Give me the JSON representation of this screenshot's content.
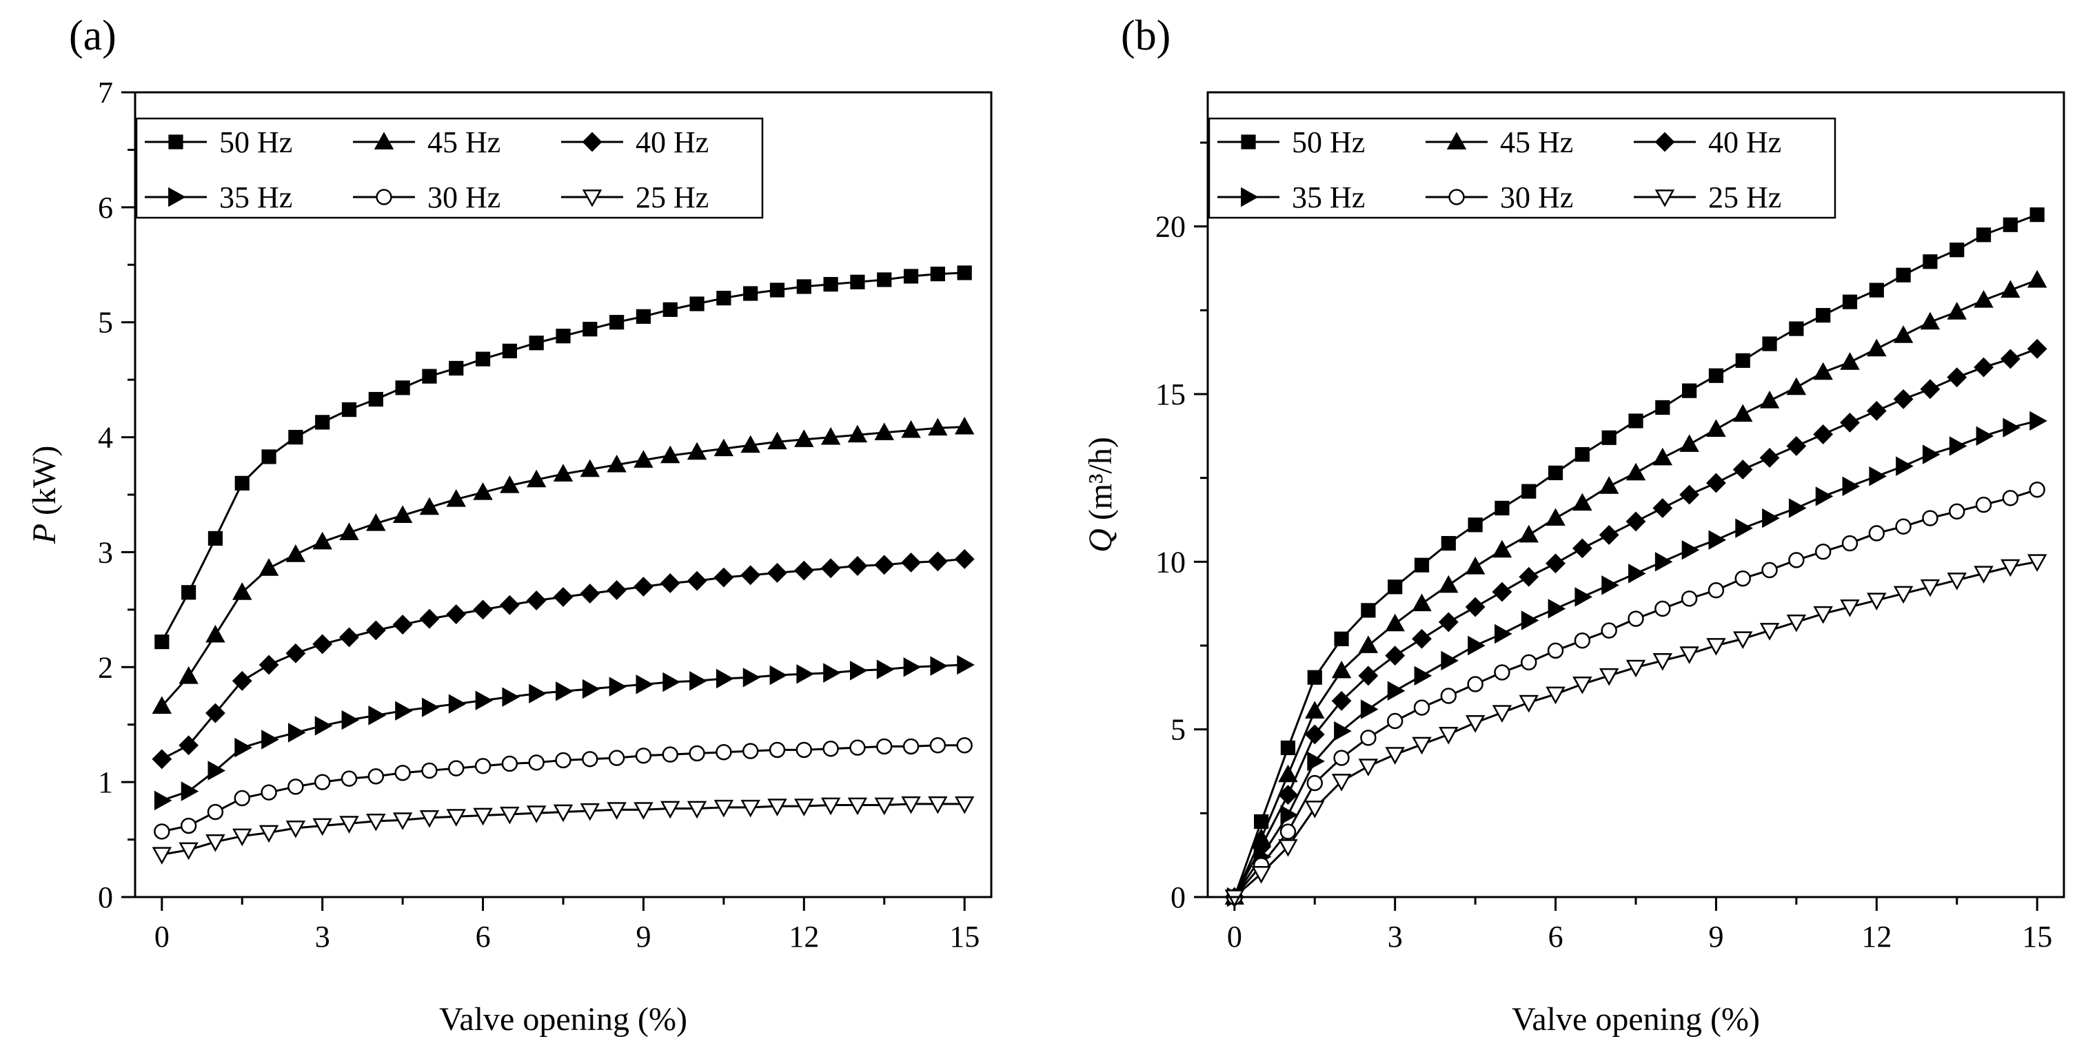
{
  "chart_data": [
    {
      "panel_label": "(a)",
      "type": "line",
      "xlabel": "Valve opening (%)",
      "ylabel_symbol": "P",
      "ylabel_unit": " (kW)",
      "xlim": [
        -0.5,
        15.5
      ],
      "ylim": [
        0,
        7
      ],
      "xticks": [
        0,
        3,
        6,
        9,
        12,
        15
      ],
      "yticks": [
        0,
        1,
        2,
        3,
        4,
        5,
        6,
        7
      ],
      "legend": "top-left",
      "x": [
        0,
        0.5,
        1,
        1.5,
        2,
        2.5,
        3,
        3.5,
        4,
        4.5,
        5,
        5.5,
        6,
        6.5,
        7,
        7.5,
        8,
        8.5,
        9,
        9.5,
        10,
        10.5,
        11,
        11.5,
        12,
        12.5,
        13,
        13.5,
        14,
        14.5,
        15
      ],
      "series": [
        {
          "name": "50 Hz",
          "marker": "square-filled",
          "values": [
            2.22,
            2.65,
            3.12,
            3.6,
            3.83,
            4.0,
            4.13,
            4.24,
            4.33,
            4.43,
            4.53,
            4.6,
            4.68,
            4.75,
            4.82,
            4.88,
            4.94,
            5.0,
            5.05,
            5.11,
            5.16,
            5.21,
            5.25,
            5.28,
            5.31,
            5.33,
            5.35,
            5.37,
            5.4,
            5.42,
            5.43
          ]
        },
        {
          "name": "45 Hz",
          "marker": "triangle-up-filled",
          "values": [
            1.66,
            1.92,
            2.28,
            2.65,
            2.86,
            2.98,
            3.09,
            3.17,
            3.25,
            3.32,
            3.39,
            3.46,
            3.52,
            3.58,
            3.63,
            3.68,
            3.72,
            3.76,
            3.8,
            3.84,
            3.87,
            3.9,
            3.93,
            3.96,
            3.98,
            4.0,
            4.02,
            4.04,
            4.06,
            4.08,
            4.09
          ]
        },
        {
          "name": "40 Hz",
          "marker": "diamond-filled",
          "values": [
            1.2,
            1.32,
            1.6,
            1.88,
            2.02,
            2.12,
            2.2,
            2.26,
            2.32,
            2.37,
            2.42,
            2.46,
            2.5,
            2.54,
            2.58,
            2.61,
            2.64,
            2.67,
            2.7,
            2.73,
            2.75,
            2.78,
            2.8,
            2.82,
            2.84,
            2.86,
            2.88,
            2.89,
            2.91,
            2.92,
            2.94
          ]
        },
        {
          "name": "35 Hz",
          "marker": "triangle-right-filled",
          "values": [
            0.84,
            0.92,
            1.1,
            1.3,
            1.37,
            1.43,
            1.49,
            1.54,
            1.58,
            1.62,
            1.65,
            1.68,
            1.71,
            1.74,
            1.77,
            1.79,
            1.81,
            1.83,
            1.85,
            1.87,
            1.88,
            1.9,
            1.91,
            1.93,
            1.94,
            1.95,
            1.97,
            1.98,
            2.0,
            2.01,
            2.02
          ]
        },
        {
          "name": "30 Hz",
          "marker": "circle-open",
          "values": [
            0.57,
            0.62,
            0.74,
            0.86,
            0.91,
            0.96,
            1.0,
            1.03,
            1.05,
            1.08,
            1.1,
            1.12,
            1.14,
            1.16,
            1.17,
            1.19,
            1.2,
            1.21,
            1.23,
            1.24,
            1.25,
            1.26,
            1.27,
            1.28,
            1.28,
            1.29,
            1.3,
            1.31,
            1.31,
            1.32,
            1.32
          ]
        },
        {
          "name": "25 Hz",
          "marker": "triangle-down-open",
          "values": [
            0.37,
            0.41,
            0.48,
            0.53,
            0.56,
            0.6,
            0.62,
            0.64,
            0.66,
            0.67,
            0.69,
            0.7,
            0.71,
            0.72,
            0.73,
            0.74,
            0.75,
            0.76,
            0.76,
            0.77,
            0.77,
            0.78,
            0.78,
            0.79,
            0.79,
            0.8,
            0.8,
            0.8,
            0.81,
            0.81,
            0.81
          ]
        }
      ]
    },
    {
      "panel_label": "(b)",
      "type": "line",
      "xlabel": "Valve opening (%)",
      "ylabel_symbol": "Q",
      "ylabel_unit": " (m³/h)",
      "xlim": [
        -0.5,
        15.5
      ],
      "ylim": [
        0,
        24
      ],
      "xticks": [
        0,
        3,
        6,
        9,
        12,
        15
      ],
      "yticks": [
        0,
        5,
        10,
        15,
        20
      ],
      "legend": "top-left",
      "x": [
        0,
        0.5,
        1,
        1.5,
        2,
        2.5,
        3,
        3.5,
        4,
        4.5,
        5,
        5.5,
        6,
        6.5,
        7,
        7.5,
        8,
        8.5,
        9,
        9.5,
        10,
        10.5,
        11,
        11.5,
        12,
        12.5,
        13,
        13.5,
        14,
        14.5,
        15
      ],
      "series": [
        {
          "name": "50 Hz",
          "marker": "square-filled",
          "values": [
            0.0,
            2.25,
            4.45,
            6.55,
            7.7,
            8.55,
            9.25,
            9.9,
            10.55,
            11.1,
            11.6,
            12.1,
            12.65,
            13.2,
            13.7,
            14.2,
            14.6,
            15.1,
            15.55,
            16.0,
            16.5,
            16.95,
            17.35,
            17.75,
            18.1,
            18.55,
            18.95,
            19.3,
            19.75,
            20.05,
            20.35
          ]
        },
        {
          "name": "45 Hz",
          "marker": "triangle-up-filled",
          "values": [
            0.0,
            1.75,
            3.65,
            5.55,
            6.75,
            7.5,
            8.15,
            8.75,
            9.3,
            9.85,
            10.35,
            10.8,
            11.3,
            11.75,
            12.25,
            12.65,
            13.1,
            13.5,
            13.95,
            14.4,
            14.8,
            15.2,
            15.65,
            15.95,
            16.35,
            16.75,
            17.15,
            17.45,
            17.8,
            18.1,
            18.4
          ]
        },
        {
          "name": "40 Hz",
          "marker": "diamond-filled",
          "values": [
            0.0,
            1.5,
            3.05,
            4.85,
            5.85,
            6.6,
            7.2,
            7.7,
            8.2,
            8.65,
            9.1,
            9.55,
            9.95,
            10.4,
            10.8,
            11.2,
            11.6,
            12.0,
            12.35,
            12.75,
            13.1,
            13.45,
            13.8,
            14.15,
            14.5,
            14.85,
            15.15,
            15.5,
            15.8,
            16.05,
            16.35
          ]
        },
        {
          "name": "35 Hz",
          "marker": "triangle-right-filled",
          "values": [
            0.0,
            1.2,
            2.45,
            4.05,
            4.95,
            5.6,
            6.15,
            6.6,
            7.05,
            7.5,
            7.85,
            8.25,
            8.6,
            8.95,
            9.3,
            9.65,
            10.0,
            10.35,
            10.65,
            11.0,
            11.3,
            11.6,
            11.95,
            12.25,
            12.55,
            12.85,
            13.2,
            13.45,
            13.75,
            14.0,
            14.2
          ]
        },
        {
          "name": "30 Hz",
          "marker": "circle-open",
          "values": [
            0.0,
            0.95,
            1.95,
            3.4,
            4.15,
            4.75,
            5.25,
            5.65,
            6.0,
            6.35,
            6.7,
            7.0,
            7.35,
            7.65,
            7.95,
            8.3,
            8.6,
            8.9,
            9.15,
            9.5,
            9.75,
            10.05,
            10.3,
            10.55,
            10.85,
            11.05,
            11.3,
            11.5,
            11.7,
            11.9,
            12.15
          ]
        },
        {
          "name": "25 Hz",
          "marker": "triangle-down-open",
          "values": [
            0.0,
            0.7,
            1.5,
            2.65,
            3.45,
            3.9,
            4.25,
            4.55,
            4.85,
            5.2,
            5.5,
            5.8,
            6.05,
            6.35,
            6.6,
            6.85,
            7.05,
            7.25,
            7.5,
            7.7,
            7.95,
            8.2,
            8.45,
            8.65,
            8.85,
            9.05,
            9.25,
            9.45,
            9.65,
            9.85,
            10.0
          ]
        }
      ]
    }
  ]
}
